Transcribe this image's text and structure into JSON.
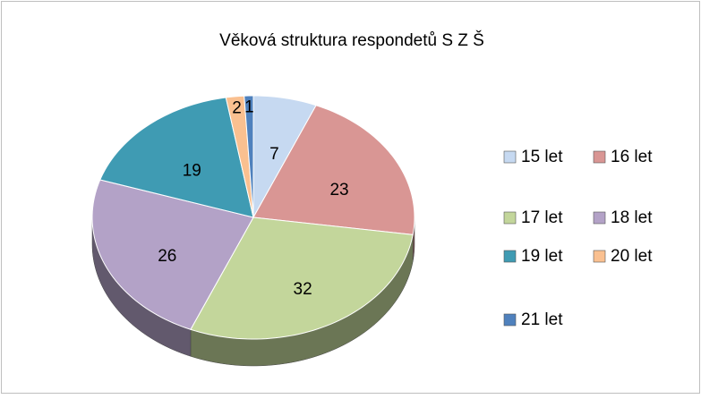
{
  "chart_data": {
    "type": "pie",
    "title": "Věková struktura respondetů S Z Š",
    "categories": [
      "15 let",
      "16 let",
      "17 let",
      "18 let",
      "19 let",
      "20 let",
      "21 let"
    ],
    "values": [
      7,
      23,
      32,
      26,
      19,
      2,
      1
    ],
    "colors": [
      "#c6d9f1",
      "#d99694",
      "#c3d69b",
      "#b3a2c7",
      "#3f9bb3",
      "#fac090",
      "#4f81bd"
    ],
    "legend": "right"
  }
}
